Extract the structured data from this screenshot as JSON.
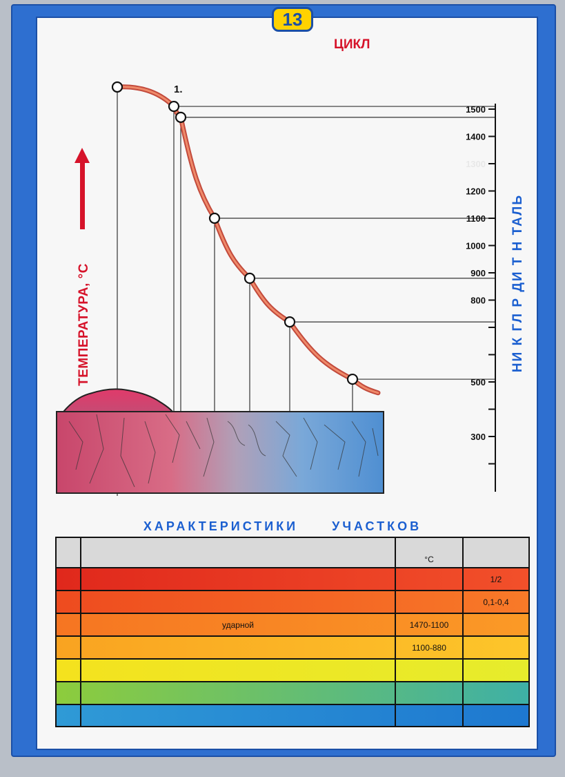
{
  "page_number": "13",
  "cycle_title": "ЦИКЛ",
  "y_axis_title": "ТЕМПЕРАТУРА, °С",
  "right_label": "НИ  К  ГЛ  Р  ДИ  Т  Н  ТАЛЬ",
  "point_label": "1.",
  "characteristics_title": [
    "ХАРАКТЕРИСТИКИ",
    "УЧАСТКОВ"
  ],
  "chart_data": {
    "type": "line",
    "title": "",
    "xlabel": "",
    "ylabel": "ТЕМПЕРАТУРА, °С",
    "ylim": [
      150,
      1550
    ],
    "y_ticks": [
      300,
      500,
      800,
      900,
      1000,
      1100,
      1200,
      1300,
      1400,
      1500
    ],
    "y_tick_labels": [
      "300",
      "500",
      "800",
      "900",
      "1000",
      "1100",
      "1200",
      "1300",
      "1400",
      "1500"
    ],
    "minor_ticks": [
      200,
      400,
      600,
      700
    ],
    "curve_points": [
      {
        "x": 0,
        "y": 1620
      },
      {
        "x": 1,
        "y": 1510
      },
      {
        "x": 2,
        "y": 1470
      },
      {
        "x": 3,
        "y": 1100
      },
      {
        "x": 4,
        "y": 880
      },
      {
        "x": 5,
        "y": 720
      },
      {
        "x": 6,
        "y": 510
      }
    ],
    "curve_tail": [
      {
        "x": 7,
        "y": 460
      }
    ],
    "marker_temps": [
      1510,
      1470,
      1100,
      880,
      720,
      510
    ],
    "grid": false
  },
  "table": {
    "header": {
      "num": "",
      "structure": "",
      "temp_unit": "°С",
      "width": ""
    },
    "rows": [
      {
        "num": "",
        "text": "",
        "temp": "",
        "width": "1/2",
        "color_from": "#e0281c",
        "color_to": "#f2502a"
      },
      {
        "num": "",
        "text": "",
        "temp": "",
        "width": "0,1-0,4",
        "color_from": "#ee4b1f",
        "color_to": "#f87a28"
      },
      {
        "num": "",
        "text": "ударной",
        "temp": "1470-1100",
        "width": "",
        "color_from": "#f67522",
        "color_to": "#fb9a26"
      },
      {
        "num": "",
        "text": "",
        "temp": "1100-880",
        "width": "",
        "color_from": "#f9a321",
        "color_to": "#fdc62a"
      },
      {
        "num": "",
        "text": "",
        "temp": "",
        "width": "",
        "color_from": "#f4e21e",
        "color_to": "#e6ec2c"
      },
      {
        "num": "",
        "text": "",
        "temp": "",
        "width": "",
        "color_from": "#8dcc3c",
        "color_to": "#3eb0a6"
      },
      {
        "num": "",
        "text": "",
        "temp": "",
        "width": "",
        "color_from": "#2f9ad6",
        "color_to": "#1e78d0"
      }
    ]
  },
  "colors": {
    "frame_blue": "#2e6fd0",
    "accent_red": "#d6132a",
    "label_blue": "#1b5fd0",
    "badge_yellow": "#ffd200"
  }
}
